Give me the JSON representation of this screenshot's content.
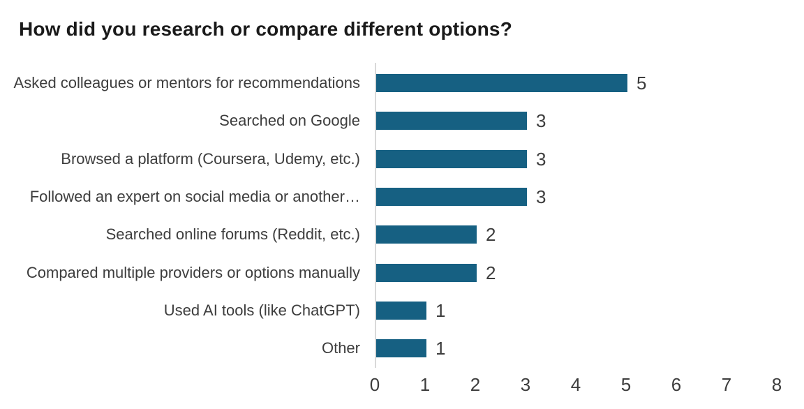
{
  "chart_data": {
    "type": "bar",
    "orientation": "horizontal",
    "title": "How did you research or compare different options?",
    "categories": [
      "Asked colleagues or mentors for recommendations",
      "Searched on Google",
      "Browsed a platform (Coursera, Udemy, etc.)",
      "Followed an expert on social media or another…",
      "Searched online forums (Reddit, etc.)",
      "Compared multiple providers or options manually",
      "Used AI tools (like ChatGPT)",
      "Other"
    ],
    "values": [
      5,
      3,
      3,
      3,
      2,
      2,
      1,
      1
    ],
    "data_labels": [
      "5",
      "3",
      "3",
      "3",
      "2",
      "2",
      "1",
      "1"
    ],
    "xlabel": "",
    "ylabel": "",
    "xlim": [
      0,
      8
    ],
    "x_ticks": [
      0,
      1,
      2,
      3,
      4,
      5,
      6,
      7,
      8
    ],
    "grid": false,
    "legend": "none"
  },
  "colors": {
    "bar": "#166082",
    "axis_line": "#d9d9d9",
    "title_text": "#1a1a1a",
    "label_text": "#3d3d3d",
    "background": "#ffffff"
  }
}
